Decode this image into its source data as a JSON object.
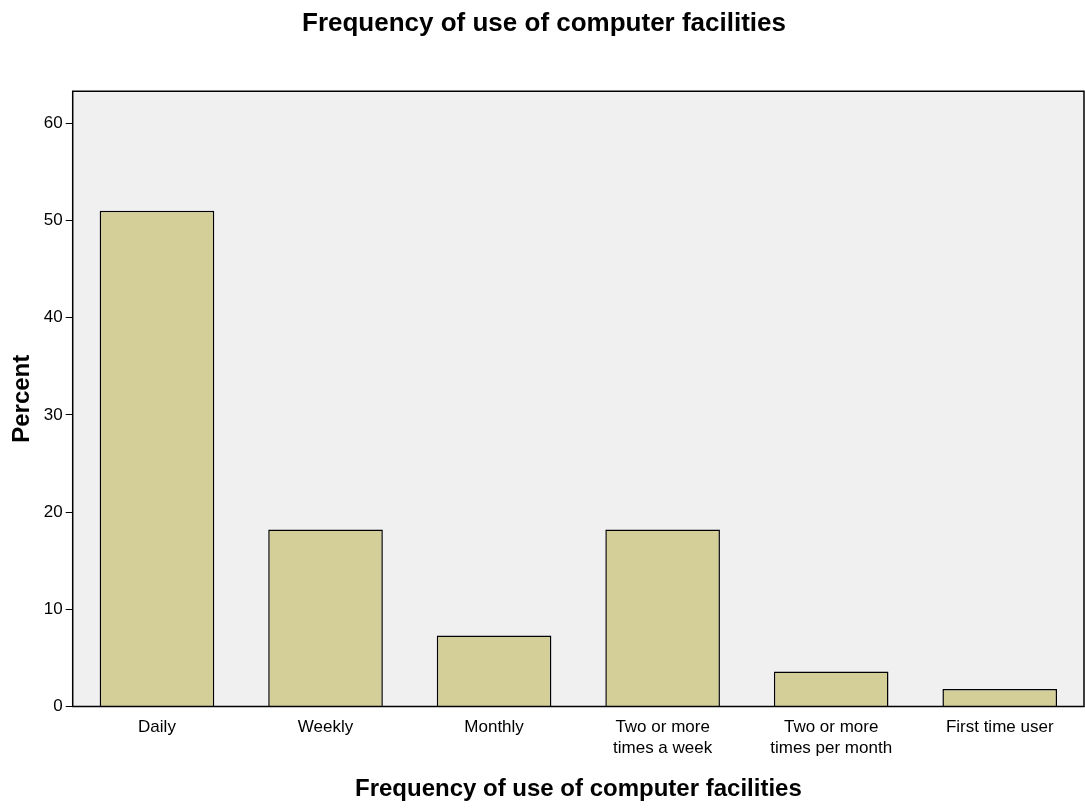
{
  "chart_data": {
    "type": "bar",
    "title": "Frequency of use of computer facilities",
    "xlabel": "Frequency of use of computer facilities",
    "ylabel": "Percent",
    "categories": [
      "Daily",
      "Weekly",
      "Monthly",
      "Two or more times a week",
      "Two or more times per month",
      "First time user"
    ],
    "values": [
      51.0,
      18.2,
      7.3,
      18.2,
      3.6,
      1.8
    ],
    "color": "#d4cf98",
    "ylim": [
      0,
      63.3
    ],
    "yticks": [
      0,
      10,
      20,
      30,
      40,
      50,
      60
    ]
  }
}
